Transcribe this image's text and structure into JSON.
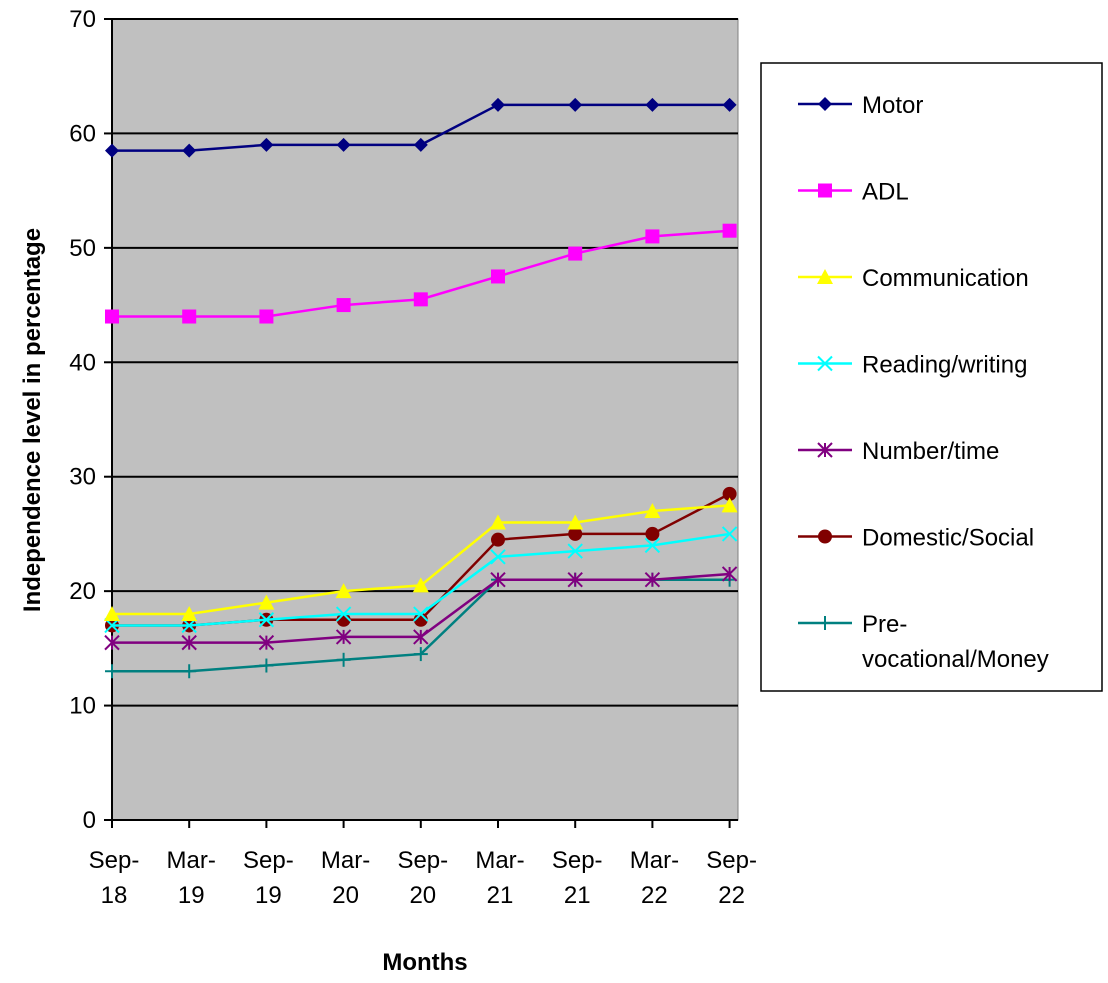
{
  "chart_data": {
    "type": "line",
    "xlabel": "Months",
    "ylabel": "Independence level in percentage",
    "ylim": [
      0,
      70
    ],
    "yticks": [
      0,
      10,
      20,
      30,
      40,
      50,
      60,
      70
    ],
    "grid": true,
    "plot_background": "#C0C0C0",
    "legend_position": "right",
    "categories": [
      [
        "Sep-",
        "18"
      ],
      [
        "Mar-",
        "19"
      ],
      [
        "Sep-",
        "19"
      ],
      [
        "Mar-",
        "20"
      ],
      [
        "Sep-",
        "20"
      ],
      [
        "Mar-",
        "21"
      ],
      [
        "Sep-",
        "21"
      ],
      [
        "Mar-",
        "22"
      ],
      [
        "Sep-",
        "22"
      ]
    ],
    "series": [
      {
        "name": "Motor",
        "color": "#000080",
        "marker": "diamond",
        "values": [
          58.5,
          58.5,
          59,
          59,
          59,
          62.5,
          62.5,
          62.5,
          62.5
        ]
      },
      {
        "name": "ADL",
        "color": "#FF00FF",
        "marker": "square",
        "values": [
          44,
          44,
          44,
          45,
          45.5,
          47.5,
          49.5,
          51,
          51.5
        ]
      },
      {
        "name": "Communication",
        "color": "#FFFF00",
        "marker": "triangle",
        "values": [
          18,
          18,
          19,
          20,
          20.5,
          26,
          26,
          27,
          27.5
        ]
      },
      {
        "name": "Reading/writing",
        "color": "#00FFFF",
        "marker": "x",
        "values": [
          17,
          17,
          17.5,
          18,
          18,
          23,
          23.5,
          24,
          25
        ]
      },
      {
        "name": "Number/time",
        "color": "#800080",
        "marker": "star",
        "values": [
          15.5,
          15.5,
          15.5,
          16,
          16,
          21,
          21,
          21,
          21.5
        ]
      },
      {
        "name": "Domestic/Social",
        "color": "#800000",
        "marker": "circle",
        "values": [
          17,
          17,
          17.5,
          17.5,
          17.5,
          24.5,
          25,
          25,
          28.5
        ]
      },
      {
        "name": [
          "Pre-",
          "vocational/Money"
        ],
        "color": "#008080",
        "marker": "plus",
        "values": [
          13,
          13,
          13.5,
          14,
          14.5,
          21,
          21,
          21,
          21
        ]
      }
    ]
  }
}
